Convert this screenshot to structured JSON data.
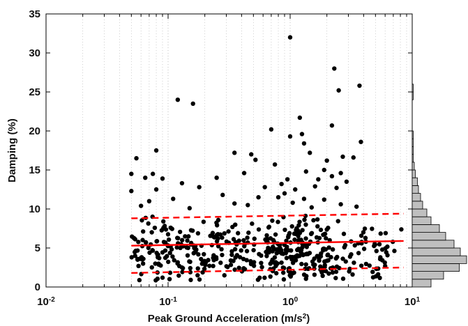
{
  "chart_data": {
    "type": "scatter",
    "xscale": "log",
    "xlabel": "Peak Ground Acceleration (m/s",
    "xlabel_sup": "2",
    "xlabel_end": ")",
    "ylabel": "Damping (%)",
    "xlim": [
      0.01,
      10
    ],
    "ylim": [
      0,
      35
    ],
    "grid": true,
    "x_ticks": [
      {
        "value": 0.01,
        "base": "10",
        "exp": "-2"
      },
      {
        "value": 0.1,
        "base": "10",
        "exp": "-1"
      },
      {
        "value": 1,
        "base": "10",
        "exp": "0"
      },
      {
        "value": 10,
        "base": "10",
        "exp": "1"
      }
    ],
    "y_ticks": [
      "0",
      "5",
      "10",
      "15",
      "20",
      "25",
      "30",
      "35"
    ],
    "series": [
      {
        "kind": "points",
        "color": "#000000",
        "points": [
          [
            1.0,
            32.0
          ],
          [
            2.3,
            28.0
          ],
          [
            2.5,
            25.2
          ],
          [
            3.7,
            25.8
          ],
          [
            0.12,
            24.0
          ],
          [
            0.16,
            23.5
          ],
          [
            2.2,
            20.7
          ],
          [
            0.7,
            20.2
          ],
          [
            1.0,
            19.3
          ],
          [
            1.25,
            19.6
          ],
          [
            3.8,
            18.6
          ],
          [
            1.45,
            17.2
          ],
          [
            1.2,
            21.7
          ],
          [
            0.35,
            17.2
          ],
          [
            0.08,
            17.5
          ],
          [
            0.055,
            16.5
          ],
          [
            0.48,
            17.0
          ],
          [
            0.52,
            16.3
          ],
          [
            2.7,
            16.7
          ],
          [
            1.3,
            18.4
          ],
          [
            3.3,
            16.6
          ],
          [
            0.75,
            15.7
          ],
          [
            2.0,
            16.2
          ],
          [
            1.9,
            15.0
          ],
          [
            2.6,
            14.6
          ],
          [
            2.2,
            14.2
          ],
          [
            0.075,
            14.5
          ],
          [
            0.065,
            14.0
          ],
          [
            0.09,
            13.9
          ],
          [
            0.05,
            14.5
          ],
          [
            0.42,
            14.6
          ],
          [
            0.95,
            13.8
          ],
          [
            1.7,
            13.8
          ],
          [
            2.9,
            13.5
          ],
          [
            1.35,
            14.8
          ],
          [
            0.25,
            14.0
          ],
          [
            0.13,
            13.3
          ],
          [
            0.18,
            12.8
          ],
          [
            0.05,
            12.3
          ],
          [
            0.08,
            12.5
          ],
          [
            0.62,
            12.8
          ],
          [
            0.85,
            13.2
          ],
          [
            0.9,
            12.0
          ],
          [
            1.1,
            12.5
          ],
          [
            1.6,
            12.9
          ],
          [
            2.4,
            12.7
          ],
          [
            1.3,
            11.3
          ],
          [
            0.28,
            11.8
          ],
          [
            0.55,
            11.5
          ],
          [
            0.11,
            11.3
          ],
          [
            0.07,
            11.0
          ],
          [
            0.35,
            10.7
          ],
          [
            0.8,
            11.5
          ],
          [
            1.9,
            11.2
          ],
          [
            3.5,
            10.3
          ],
          [
            0.06,
            10.4
          ],
          [
            0.15,
            10.1
          ],
          [
            0.45,
            10.5
          ],
          [
            1.05,
            10.8
          ],
          [
            1.5,
            10.2
          ],
          [
            2.6,
            10.6
          ]
        ]
      },
      {
        "kind": "cluster",
        "color": "#000000",
        "clusters": [
          {
            "xlog": [
              -1.3,
              -0.75
            ],
            "ylim": [
              0.8,
              9.8
            ],
            "count": 120
          },
          {
            "xlog": [
              -0.75,
              -0.2
            ],
            "ylim": [
              0.8,
              9.8
            ],
            "count": 95
          },
          {
            "xlog": [
              -0.2,
              0.35
            ],
            "ylim": [
              0.8,
              10.0
            ],
            "count": 190
          },
          {
            "xlog": [
              0.35,
              0.8
            ],
            "ylim": [
              1.0,
              9.0
            ],
            "count": 60
          },
          {
            "xlog": [
              0.8,
              0.95
            ],
            "ylim": [
              2.5,
              7.5
            ],
            "count": 3
          }
        ]
      },
      {
        "name": "",
        "kind": "line",
        "color": "#ff0000",
        "dash": false,
        "points": [
          [
            0.05,
            5.3
          ],
          [
            8.5,
            5.9
          ]
        ]
      },
      {
        "name": "",
        "kind": "line",
        "color": "#ff0000",
        "dash": true,
        "points": [
          [
            0.05,
            8.8
          ],
          [
            8.5,
            9.4
          ]
        ]
      },
      {
        "name": "",
        "kind": "line",
        "color": "#ff0000",
        "dash": true,
        "points": [
          [
            0.05,
            1.8
          ],
          [
            8.5,
            2.5
          ]
        ]
      }
    ],
    "histogram": {
      "orientation": "horizontal",
      "bin_width": 1,
      "fill": "#bfbfbf",
      "stroke": "#000000",
      "bins": [
        {
          "y": 0,
          "count": 18
        },
        {
          "y": 1,
          "count": 30
        },
        {
          "y": 2,
          "count": 45
        },
        {
          "y": 3,
          "count": 52
        },
        {
          "y": 4,
          "count": 46
        },
        {
          "y": 5,
          "count": 40
        },
        {
          "y": 6,
          "count": 32
        },
        {
          "y": 7,
          "count": 26
        },
        {
          "y": 8,
          "count": 18
        },
        {
          "y": 9,
          "count": 14
        },
        {
          "y": 10,
          "count": 10
        },
        {
          "y": 11,
          "count": 8
        },
        {
          "y": 12,
          "count": 6
        },
        {
          "y": 13,
          "count": 5
        },
        {
          "y": 14,
          "count": 3
        },
        {
          "y": 15,
          "count": 2
        },
        {
          "y": 16,
          "count": 1
        },
        {
          "y": 17,
          "count": 1
        },
        {
          "y": 18,
          "count": 1
        },
        {
          "y": 19,
          "count": 1
        },
        {
          "y": 24,
          "count": 1
        },
        {
          "y": 25,
          "count": 1
        }
      ]
    }
  }
}
